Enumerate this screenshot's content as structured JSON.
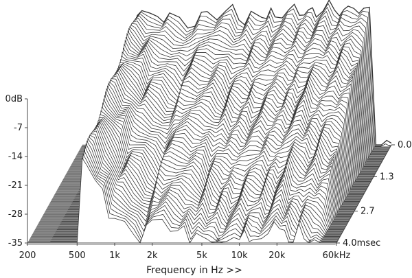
{
  "chart_data": {
    "type": "waterfall-3d",
    "title": "",
    "xlabel": "Frequency in Hz >>",
    "ylabel": "",
    "zlabel": "",
    "x_scale": "log",
    "xlim": [
      200,
      60000
    ],
    "ylim": [
      -35,
      0
    ],
    "zlim": [
      0.0,
      4.0
    ],
    "x_ticks": [
      {
        "value": 200,
        "label": "200"
      },
      {
        "value": 500,
        "label": "500"
      },
      {
        "value": 1000,
        "label": "1k"
      },
      {
        "value": 2000,
        "label": "2k"
      },
      {
        "value": 5000,
        "label": "5k"
      },
      {
        "value": 10000,
        "label": "10k"
      },
      {
        "value": 20000,
        "label": "20k"
      },
      {
        "value": 60000,
        "label": "60kHz"
      }
    ],
    "y_ticks": [
      {
        "value": 0,
        "label": "0dB"
      },
      {
        "value": -7,
        "label": "-7"
      },
      {
        "value": -14,
        "label": "-14"
      },
      {
        "value": -21,
        "label": "-21"
      },
      {
        "value": -28,
        "label": "-28"
      },
      {
        "value": -35,
        "label": "-35"
      }
    ],
    "z_ticks": [
      {
        "value": 0.0,
        "label": "0.0"
      },
      {
        "value": 1.3,
        "label": "1.3"
      },
      {
        "value": 2.7,
        "label": "2.7"
      },
      {
        "value": 4.0,
        "label": "4.0msec"
      }
    ],
    "colors": {
      "line": "#333333",
      "fill": "#ffffff",
      "floor": "#8c8c8c",
      "axis": "#444444"
    },
    "slice_count": 60,
    "slice_time_step_ms": 0.0678,
    "frequency_points_hz": [
      300,
      400,
      500,
      550,
      600,
      700,
      800,
      900,
      1000,
      1200,
      1400,
      1600,
      1800,
      2000,
      2400,
      2800,
      3200,
      3600,
      4000,
      4500,
      5000,
      5500,
      6000,
      6500,
      7000,
      8000,
      9000,
      10000,
      11000,
      12000,
      13000,
      14000,
      15000,
      17000,
      19000,
      21000,
      23000,
      25000,
      27000,
      30000,
      33000,
      36000,
      40000,
      45000,
      50000,
      55000,
      60000
    ],
    "initial_response_db": [
      -35,
      -35,
      -35,
      -2.5,
      -3,
      -4,
      -3,
      -4.5,
      -4,
      -4.5,
      -5.5,
      -6,
      -4,
      -2.5,
      -3.5,
      -3,
      -2,
      -4,
      -5,
      -3.5,
      -4,
      -3,
      -4,
      -3,
      -4,
      -3,
      -2.5,
      -2,
      -3,
      -2.5,
      -3,
      -2.5,
      -3,
      -2,
      -1,
      -2.5,
      -2.5,
      -2.2,
      -2.5,
      -1.5,
      -2,
      -2.5,
      -2.5,
      -35,
      -35,
      -35,
      -35
    ],
    "decay_rate_db_per_ms": [
      8,
      8,
      8,
      3,
      3,
      4,
      5,
      6,
      6,
      6.5,
      7,
      7.5,
      6.5,
      7,
      6.5,
      7,
      7.5,
      7,
      7.5,
      7,
      7.5,
      8,
      7.5,
      8,
      8,
      8,
      7.5,
      8,
      7.5,
      8,
      7.5,
      8,
      8,
      7.5,
      7,
      7.5,
      7.5,
      8,
      8,
      7.5,
      8,
      8,
      8,
      8,
      8,
      8,
      8
    ]
  }
}
